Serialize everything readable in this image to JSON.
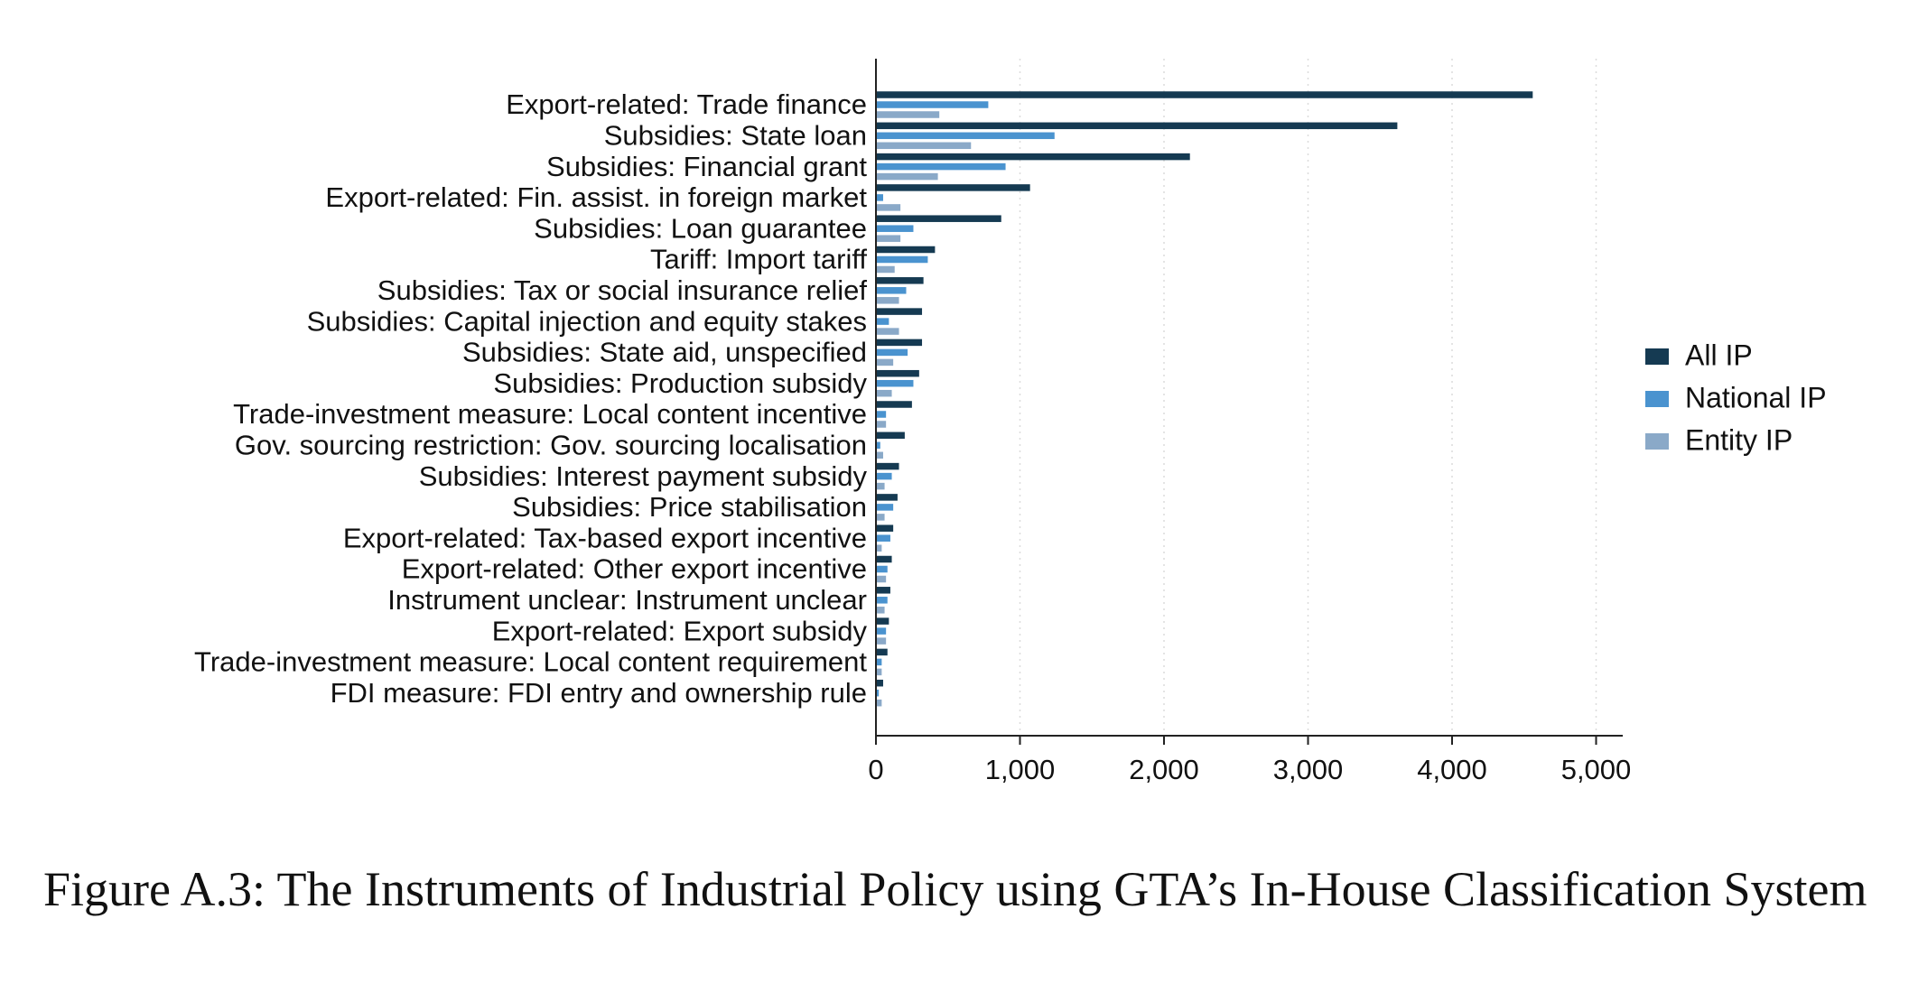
{
  "caption": "Figure A.3: The Instruments of Industrial Policy using GTA’s In-House Classification System",
  "colors": {
    "all_ip": "#153a52",
    "national_ip": "#4a93cf",
    "entity_ip": "#8aa9c8",
    "gridline": "#dcdcdc",
    "axis": "#222222"
  },
  "chart_data": {
    "type": "bar",
    "orientation": "horizontal",
    "title": "",
    "xlabel": "",
    "ylabel": "",
    "xlim": [
      0,
      5200
    ],
    "xticks": [
      0,
      1000,
      2000,
      3000,
      4000,
      5000
    ],
    "xtick_labels": [
      "0",
      "1,000",
      "2,000",
      "3,000",
      "4,000",
      "5,000"
    ],
    "grid": "vertical dotted",
    "legend_position": "right",
    "categories": [
      "Export-related: Trade finance",
      "Subsidies: State loan",
      "Subsidies: Financial grant",
      "Export-related: Fin. assist. in foreign market",
      "Subsidies: Loan guarantee",
      "Tariff: Import tariff",
      "Subsidies: Tax or social insurance relief",
      "Subsidies: Capital injection and equity stakes",
      "Subsidies: State aid, unspecified",
      "Subsidies: Production subsidy",
      "Trade-investment measure: Local content incentive",
      "Gov. sourcing restriction: Gov. sourcing localisation",
      "Subsidies: Interest payment subsidy",
      "Subsidies: Price stabilisation",
      "Export-related: Tax-based export incentive",
      "Export-related: Other export incentive",
      "Instrument unclear: Instrument unclear",
      "Export-related: Export subsidy",
      "Trade-investment measure: Local content requirement",
      "FDI measure: FDI entry and ownership rule"
    ],
    "series": [
      {
        "name": "All IP",
        "color_key": "all_ip",
        "values": [
          4560,
          3620,
          2180,
          1070,
          870,
          410,
          330,
          320,
          320,
          300,
          250,
          200,
          160,
          150,
          120,
          110,
          100,
          90,
          80,
          50
        ]
      },
      {
        "name": "National IP",
        "color_key": "national_ip",
        "values": [
          780,
          1240,
          900,
          50,
          260,
          360,
          210,
          90,
          220,
          260,
          70,
          30,
          110,
          120,
          100,
          80,
          80,
          70,
          40,
          20
        ]
      },
      {
        "name": "Entity IP",
        "color_key": "entity_ip",
        "values": [
          440,
          660,
          430,
          170,
          170,
          130,
          160,
          160,
          120,
          110,
          70,
          50,
          60,
          60,
          40,
          70,
          60,
          70,
          40,
          40
        ]
      }
    ]
  }
}
